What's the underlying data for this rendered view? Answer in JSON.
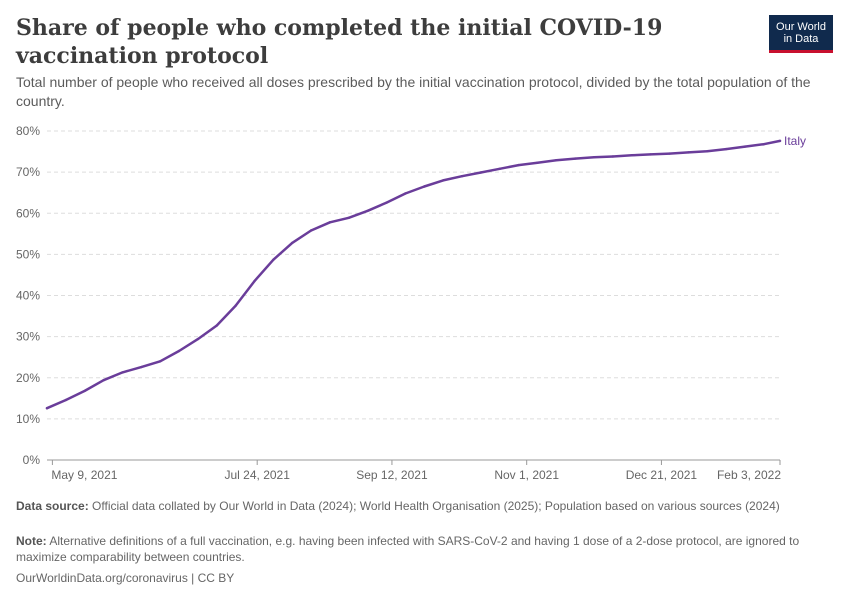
{
  "header": {
    "title": "Share of people who completed the initial COVID-19 vaccination protocol",
    "subtitle": "Total number of people who received all doses prescribed by the initial vaccination protocol, divided by the total population of the country.",
    "logo_line1": "Our World",
    "logo_line2": "in Data"
  },
  "footer": {
    "source_label": "Data source:",
    "source_text": "Official data collated by Our World in Data (2024); World Health Organisation (2025); Population based on various sources (2024)",
    "note_label": "Note:",
    "note_text": "Alternative definitions of a full vaccination, e.g. having been infected with SARS-CoV-2 and having 1 dose of a 2-dose protocol, are ignored to maximize comparability between countries.",
    "credit": "OurWorldinData.org/coronavirus | CC BY"
  },
  "colors": {
    "series": "#6a3d9a",
    "grid": "#dddddd",
    "axis": "#999999"
  },
  "chart_data": {
    "type": "line",
    "title": "Share of people who completed the initial COVID-19 vaccination protocol",
    "xlabel": "",
    "ylabel": "",
    "x_domain": [
      "2021-05-07",
      "2022-02-03"
    ],
    "ylim": [
      0,
      80
    ],
    "y_ticks": [
      0,
      10,
      20,
      30,
      40,
      50,
      60,
      70,
      80
    ],
    "y_tick_labels": [
      "0%",
      "10%",
      "20%",
      "30%",
      "40%",
      "50%",
      "60%",
      "70%",
      "80%"
    ],
    "x_ticks": [
      "2021-05-09",
      "2021-07-24",
      "2021-09-12",
      "2021-11-01",
      "2021-12-21",
      "2022-02-03"
    ],
    "x_tick_labels": [
      "May 9, 2021",
      "Jul 24, 2021",
      "Sep 12, 2021",
      "Nov 1, 2021",
      "Dec 21, 2021",
      "Feb 3, 2022"
    ],
    "grid": "horizontal dashed",
    "legend": "label at line end",
    "series": [
      {
        "name": "Italy",
        "points": [
          [
            "2021-05-07",
            12.6
          ],
          [
            "2021-05-14",
            14.6
          ],
          [
            "2021-05-21",
            16.8
          ],
          [
            "2021-05-28",
            19.4
          ],
          [
            "2021-06-04",
            21.3
          ],
          [
            "2021-06-11",
            22.6
          ],
          [
            "2021-06-18",
            24.0
          ],
          [
            "2021-06-25",
            26.5
          ],
          [
            "2021-07-02",
            29.4
          ],
          [
            "2021-07-09",
            32.7
          ],
          [
            "2021-07-16",
            37.5
          ],
          [
            "2021-07-23",
            43.5
          ],
          [
            "2021-07-30",
            48.7
          ],
          [
            "2021-08-06",
            52.8
          ],
          [
            "2021-08-13",
            55.8
          ],
          [
            "2021-08-20",
            57.8
          ],
          [
            "2021-08-27",
            58.9
          ],
          [
            "2021-09-03",
            60.6
          ],
          [
            "2021-09-10",
            62.6
          ],
          [
            "2021-09-17",
            64.8
          ],
          [
            "2021-09-24",
            66.5
          ],
          [
            "2021-10-01",
            68.0
          ],
          [
            "2021-10-08",
            69.0
          ],
          [
            "2021-10-15",
            69.9
          ],
          [
            "2021-10-22",
            70.8
          ],
          [
            "2021-10-29",
            71.7
          ],
          [
            "2021-11-05",
            72.3
          ],
          [
            "2021-11-12",
            72.9
          ],
          [
            "2021-11-19",
            73.3
          ],
          [
            "2021-11-26",
            73.6
          ],
          [
            "2021-12-03",
            73.8
          ],
          [
            "2021-12-10",
            74.1
          ],
          [
            "2021-12-17",
            74.3
          ],
          [
            "2021-12-24",
            74.5
          ],
          [
            "2021-12-31",
            74.8
          ],
          [
            "2022-01-07",
            75.1
          ],
          [
            "2022-01-14",
            75.6
          ],
          [
            "2022-01-21",
            76.2
          ],
          [
            "2022-01-28",
            76.8
          ],
          [
            "2022-02-03",
            77.6
          ]
        ]
      }
    ]
  }
}
